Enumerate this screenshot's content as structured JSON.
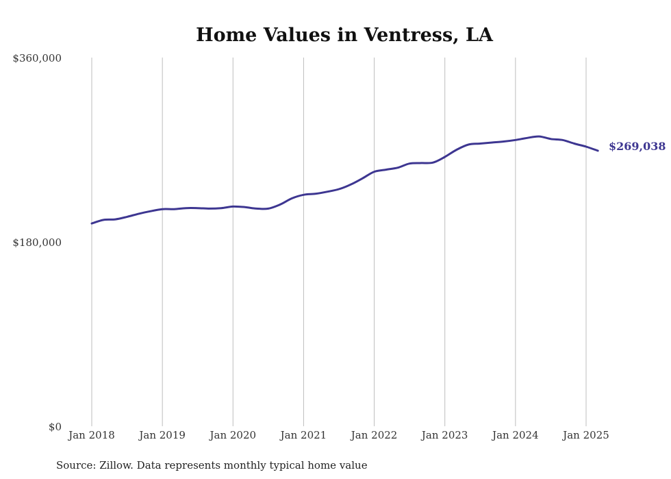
{
  "chart_data": {
    "type": "line",
    "title": "Home Values in Ventress, LA",
    "source": "Source: Zillow. Data represents monthly typical home value",
    "xlabel": "",
    "ylabel": "",
    "ylim": [
      0,
      360000
    ],
    "yticks": [
      0,
      180000,
      360000
    ],
    "ytick_labels": [
      "$0",
      "$180,000",
      "$360,000"
    ],
    "xlim": [
      "2018-01",
      "2025-03"
    ],
    "xticks": [
      "2018-01",
      "2019-01",
      "2020-01",
      "2021-01",
      "2022-01",
      "2023-01",
      "2024-01",
      "2025-01"
    ],
    "xtick_labels": [
      "Jan 2018",
      "Jan 2019",
      "Jan 2020",
      "Jan 2021",
      "Jan 2022",
      "Jan 2023",
      "Jan 2024",
      "Jan 2025"
    ],
    "grid": "vertical",
    "line_color": "#3d3691",
    "end_label": "$269,038",
    "series": [
      {
        "x": [
          "2018-01",
          "2018-03",
          "2018-05",
          "2018-07",
          "2018-09",
          "2018-11",
          "2019-01",
          "2019-03",
          "2019-05",
          "2019-07",
          "2019-09",
          "2019-11",
          "2020-01",
          "2020-03",
          "2020-05",
          "2020-07",
          "2020-09",
          "2020-11",
          "2021-01",
          "2021-03",
          "2021-05",
          "2021-07",
          "2021-09",
          "2021-11",
          "2022-01",
          "2022-03",
          "2022-05",
          "2022-07",
          "2022-09",
          "2022-11",
          "2023-01",
          "2023-03",
          "2023-05",
          "2023-07",
          "2023-09",
          "2023-11",
          "2024-01",
          "2024-03",
          "2024-05",
          "2024-07",
          "2024-09",
          "2024-11",
          "2025-01",
          "2025-03"
        ],
        "values": [
          198000,
          201500,
          202000,
          204500,
          207500,
          210000,
          212000,
          212000,
          213000,
          213000,
          212500,
          213000,
          214500,
          214000,
          212500,
          212500,
          216500,
          222500,
          226000,
          227000,
          229000,
          231500,
          236000,
          242000,
          248500,
          250500,
          252500,
          256500,
          257000,
          257500,
          263000,
          270000,
          275000,
          276000,
          277000,
          278000,
          279500,
          281500,
          283000,
          280500,
          279500,
          276000,
          273000,
          269038
        ]
      }
    ]
  }
}
